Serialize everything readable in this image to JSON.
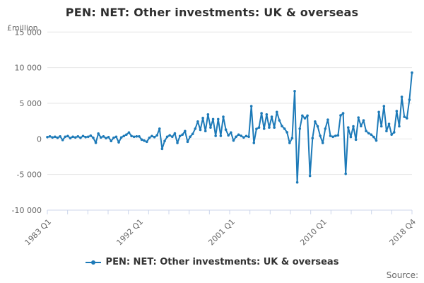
{
  "title": "PEN: NET: Other investments: UK & overseas",
  "y_axis": {
    "unit_label": "£million",
    "tick_labels": [
      "15 000",
      "10 000",
      "5 000",
      "0",
      "-5 000",
      "-10 000"
    ],
    "min": -10000,
    "max": 15000,
    "step": 5000
  },
  "x_axis": {
    "labels": [
      "1983 Q1",
      "1992 Q1",
      "2001 Q1",
      "2010 Q1",
      "2018 Q4"
    ],
    "label_quarter_index": [
      0,
      36,
      72,
      108,
      143
    ],
    "tick_interval_count": 18
  },
  "legend": {
    "label": "PEN: NET: Other investments: UK & overseas"
  },
  "source_label": "Source:",
  "colors": {
    "series": "#1d7ab8",
    "grid": "#e6e6e6",
    "axis": "#ccd6eb",
    "muted_text": "#666666",
    "title_text": "#2f2f2f"
  },
  "chart_data": {
    "type": "line",
    "title": "PEN: NET: Other investments: UK & overseas",
    "xlabel": "",
    "ylabel": "£million",
    "ylim": [
      -10000,
      15000
    ],
    "grid": true,
    "legend_position": "bottom",
    "x_start": "1983 Q1",
    "x_end": "2018 Q4",
    "frequency": "quarterly",
    "x_tick_labels": [
      "1983 Q1",
      "1992 Q1",
      "2001 Q1",
      "2010 Q1",
      "2018 Q4"
    ],
    "series": [
      {
        "name": "PEN: NET: Other investments: UK & overseas",
        "color": "#1d7ab8",
        "values": [
          250,
          350,
          200,
          300,
          150,
          350,
          -150,
          300,
          400,
          100,
          300,
          200,
          350,
          150,
          400,
          250,
          300,
          450,
          150,
          -550,
          750,
          200,
          350,
          100,
          250,
          -300,
          150,
          300,
          -480,
          200,
          400,
          600,
          900,
          400,
          300,
          350,
          350,
          -100,
          -250,
          -400,
          150,
          400,
          250,
          500,
          1430,
          -1400,
          -300,
          300,
          500,
          300,
          770,
          -570,
          400,
          600,
          1100,
          -400,
          300,
          700,
          1430,
          2430,
          1270,
          2930,
          1100,
          3430,
          1600,
          2770,
          430,
          2770,
          430,
          3100,
          1300,
          500,
          900,
          -230,
          300,
          600,
          430,
          200,
          400,
          300,
          4600,
          -570,
          1400,
          1600,
          3600,
          1430,
          3430,
          1600,
          3100,
          1600,
          3770,
          2600,
          1800,
          1430,
          930,
          -570,
          100,
          6700,
          -6100,
          1430,
          3270,
          2900,
          3270,
          -5200,
          100,
          2430,
          1770,
          430,
          -570,
          1430,
          2700,
          430,
          300,
          430,
          500,
          3300,
          3600,
          -4900,
          1600,
          270,
          1770,
          -100,
          3000,
          1800,
          2600,
          1100,
          800,
          600,
          270,
          -230,
          3770,
          1770,
          4600,
          1100,
          2100,
          600,
          930,
          3900,
          1770,
          5900,
          3100,
          2900,
          5500,
          9300
        ]
      }
    ]
  }
}
